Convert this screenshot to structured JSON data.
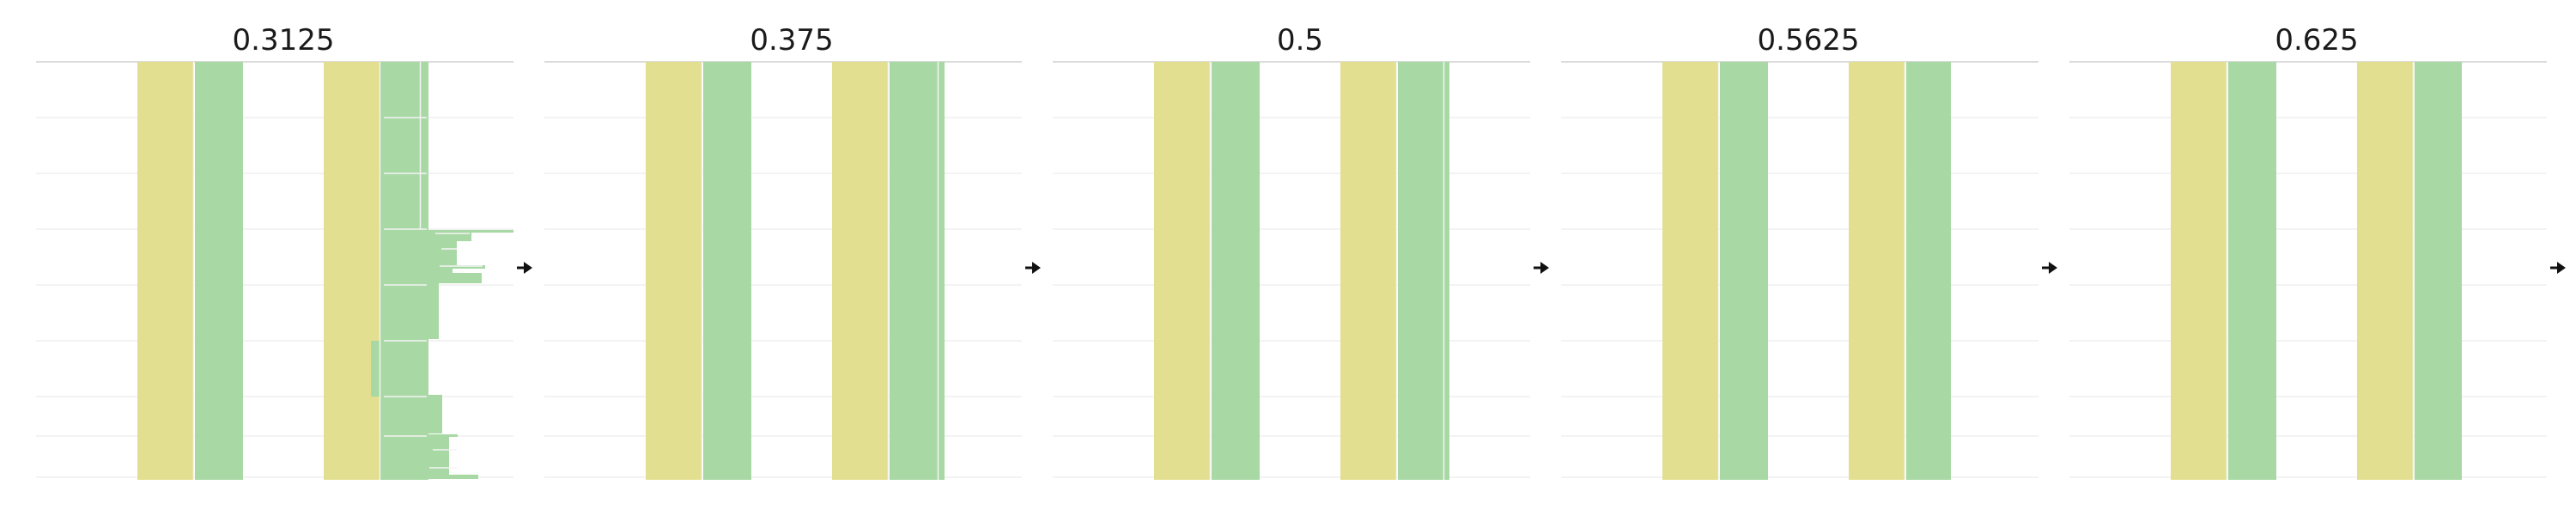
{
  "diagram": {
    "colors": {
      "yellow_band": "#e3df91",
      "green_band": "#a8d8a4",
      "grid": "#ececec",
      "top_rule": "#cfcfcf",
      "arrow": "#111111",
      "separator": "#f4f4f4"
    },
    "panels": [
      {
        "title": "0.3125",
        "arrow_icon": "arrow-right-icon"
      },
      {
        "title": "0.375",
        "arrow_icon": "arrow-right-icon"
      },
      {
        "title": "0.5",
        "arrow_icon": "arrow-right-icon"
      },
      {
        "title": "0.5625",
        "arrow_icon": "arrow-right-icon"
      },
      {
        "title": "0.625",
        "arrow_icon": "arrow-right-icon"
      }
    ]
  }
}
